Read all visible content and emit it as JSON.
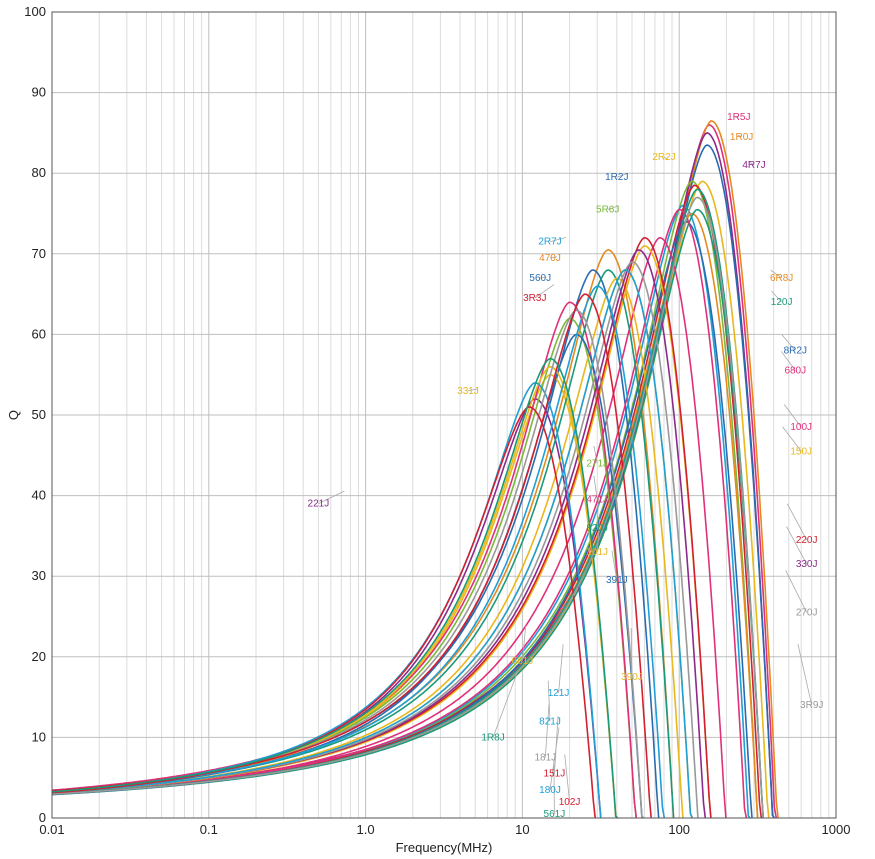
{
  "chart_data": {
    "type": "line",
    "title": "",
    "xlabel": "Frequency(MHz)",
    "ylabel": "Q",
    "x_scale": "log",
    "xlim": [
      0.01,
      1000
    ],
    "ylim": [
      0,
      100
    ],
    "grid": true,
    "x_tick_labels": [
      "0.01",
      "0.1",
      "1.0",
      "10",
      "100",
      "1000"
    ],
    "y_tick_labels": [
      "0",
      "10",
      "20",
      "30",
      "40",
      "50",
      "60",
      "70",
      "80",
      "90",
      "100"
    ],
    "series": [
      {
        "name": "1R5J",
        "color": "#e0307a",
        "peak_freq_mhz": 155,
        "peak_q": 86,
        "label_at": [
          240,
          87
        ]
      },
      {
        "name": "1R0J",
        "color": "#e68a1f",
        "peak_freq_mhz": 160,
        "peak_q": 86.5,
        "label_at": [
          250,
          84.5
        ]
      },
      {
        "name": "4R7J",
        "color": "#8a2a8a",
        "peak_freq_mhz": 150,
        "peak_q": 85,
        "label_at": [
          300,
          81
        ]
      },
      {
        "name": "2R2J",
        "color": "#e8b81c",
        "peak_freq_mhz": 140,
        "peak_q": 79,
        "label_at": [
          80,
          82
        ]
      },
      {
        "name": "1R2J",
        "color": "#2a6bb0",
        "peak_freq_mhz": 150,
        "peak_q": 83.5,
        "label_at": [
          40,
          79.5
        ]
      },
      {
        "name": "5R6J",
        "color": "#7ab93a",
        "peak_freq_mhz": 120,
        "peak_q": 79,
        "label_at": [
          35,
          75.5
        ]
      },
      {
        "name": "2R7J",
        "color": "#1f9fd6",
        "peak_freq_mhz": 105,
        "peak_q": 76,
        "label_at": [
          15,
          71.5
        ]
      },
      {
        "name": "470J",
        "color": "#e68a1f",
        "peak_freq_mhz": 35,
        "peak_q": 70.5,
        "label_at": [
          15,
          69.5
        ]
      },
      {
        "name": "560J",
        "color": "#2a6bb0",
        "peak_freq_mhz": 28,
        "peak_q": 68,
        "label_at": [
          13,
          67
        ]
      },
      {
        "name": "3R3J",
        "color": "#d22030",
        "peak_freq_mhz": 125,
        "peak_q": 78.5,
        "label_at": [
          12,
          64.5
        ]
      },
      {
        "name": "6R8J",
        "color": "#e68a1f",
        "peak_freq_mhz": 120,
        "peak_q": 75,
        "label_at": [
          450,
          67
        ]
      },
      {
        "name": "120J",
        "color": "#1a9a7a",
        "peak_freq_mhz": 130,
        "peak_q": 75.5,
        "label_at": [
          450,
          64
        ]
      },
      {
        "name": "8R2J",
        "color": "#2a6bb0",
        "peak_freq_mhz": 110,
        "peak_q": 74,
        "label_at": [
          550,
          58
        ]
      },
      {
        "name": "680J",
        "color": "#e0307a",
        "peak_freq_mhz": 100,
        "peak_q": 75.5,
        "label_at": [
          550,
          55.5
        ]
      },
      {
        "name": "100J",
        "color": "#e0307a",
        "peak_freq_mhz": 75,
        "peak_q": 72,
        "label_at": [
          600,
          48.5
        ]
      },
      {
        "name": "150J",
        "color": "#e8b81c",
        "peak_freq_mhz": 60,
        "peak_q": 71,
        "label_at": [
          600,
          45.5
        ]
      },
      {
        "name": "331J",
        "color": "#e8b81c",
        "peak_freq_mhz": 15,
        "peak_q": 55,
        "label_at": [
          4.5,
          53
        ]
      },
      {
        "name": "221J",
        "color": "#8a2a8a",
        "peak_freq_mhz": 12,
        "peak_q": 52,
        "label_at": [
          0.5,
          39
        ]
      },
      {
        "name": "271J",
        "color": "#7ab93a",
        "peak_freq_mhz": 20,
        "peak_q": 62,
        "label_at": [
          30,
          44
        ]
      },
      {
        "name": "471J",
        "color": "#e0307a",
        "peak_freq_mhz": 20,
        "peak_q": 64,
        "label_at": [
          30,
          39.5
        ]
      },
      {
        "name": "820J",
        "color": "#1a9a7a",
        "peak_freq_mhz": 35,
        "peak_q": 68,
        "label_at": [
          30,
          36
        ]
      },
      {
        "name": "101J",
        "color": "#e8b81c",
        "peak_freq_mhz": 40,
        "peak_q": 67,
        "label_at": [
          30,
          33
        ]
      },
      {
        "name": "391J",
        "color": "#2a6bb0",
        "peak_freq_mhz": 22,
        "peak_q": 60,
        "label_at": [
          40,
          29.5
        ]
      },
      {
        "name": "220J",
        "color": "#d22030",
        "peak_freq_mhz": 60,
        "peak_q": 72,
        "label_at": [
          650,
          34.5
        ]
      },
      {
        "name": "330J",
        "color": "#8a2a8a",
        "peak_freq_mhz": 55,
        "peak_q": 70.5,
        "label_at": [
          650,
          31.5
        ]
      },
      {
        "name": "270J",
        "color": "#999999",
        "peak_freq_mhz": 50,
        "peak_q": 69,
        "label_at": [
          650,
          25.5
        ]
      },
      {
        "name": "681J",
        "color": "#e8b81c",
        "peak_freq_mhz": 15,
        "peak_q": 56,
        "label_at": [
          10,
          19.5
        ]
      },
      {
        "name": "390J",
        "color": "#e8b81c",
        "peak_freq_mhz": 45,
        "peak_q": 68,
        "label_at": [
          50,
          17.5
        ]
      },
      {
        "name": "121J",
        "color": "#1f9fd6",
        "peak_freq_mhz": 30,
        "peak_q": 66,
        "label_at": [
          17,
          15.5
        ]
      },
      {
        "name": "821J",
        "color": "#1f9fd6",
        "peak_freq_mhz": 12,
        "peak_q": 54,
        "label_at": [
          15,
          12
        ]
      },
      {
        "name": "1R8J",
        "color": "#1a9a7a",
        "peak_freq_mhz": 130,
        "peak_q": 78,
        "label_at": [
          6.5,
          10
        ]
      },
      {
        "name": "181J",
        "color": "#999999",
        "peak_freq_mhz": 22,
        "peak_q": 63,
        "label_at": [
          14,
          7.5
        ]
      },
      {
        "name": "151J",
        "color": "#d22030",
        "peak_freq_mhz": 25,
        "peak_q": 65,
        "label_at": [
          16,
          5.5
        ]
      },
      {
        "name": "180J",
        "color": "#1f9fd6",
        "peak_freq_mhz": 45,
        "peak_q": 68,
        "label_at": [
          15,
          3.5
        ]
      },
      {
        "name": "102J",
        "color": "#d22030",
        "peak_freq_mhz": 11,
        "peak_q": 51,
        "label_at": [
          20,
          2
        ]
      },
      {
        "name": "561J",
        "color": "#1a9a7a",
        "peak_freq_mhz": 15,
        "peak_q": 57,
        "label_at": [
          16,
          0.5
        ]
      },
      {
        "name": "3R9J",
        "color": "#999999",
        "peak_freq_mhz": 130,
        "peak_q": 77,
        "label_at": [
          700,
          14
        ]
      }
    ]
  }
}
